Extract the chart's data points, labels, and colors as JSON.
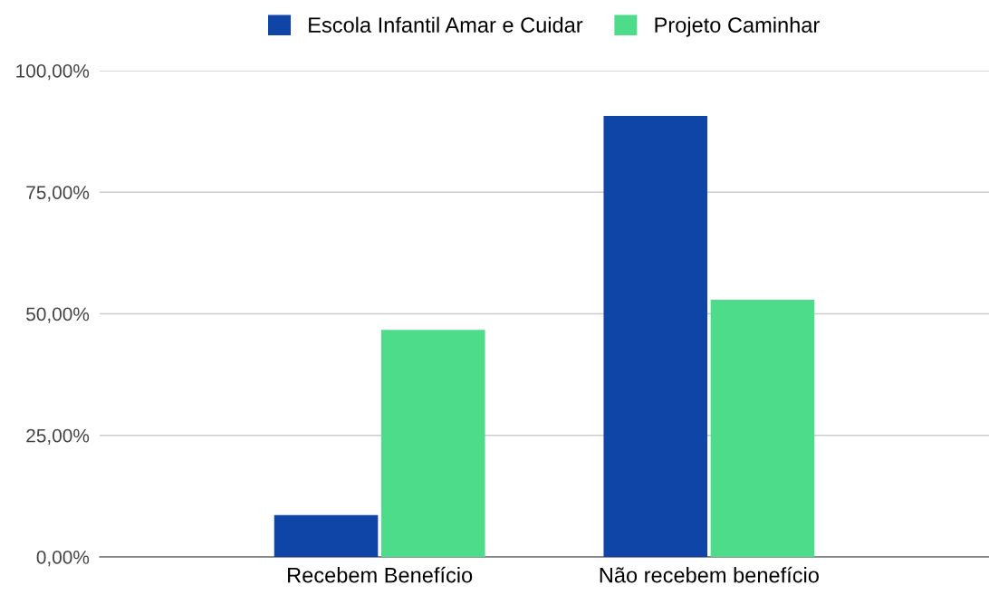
{
  "chart_data": {
    "type": "bar",
    "categories": [
      "Recebem Benefício",
      "Não recebem benefício"
    ],
    "series": [
      {
        "name": "Escola Infantil Amar e Cuidar",
        "color": "#1045a8",
        "values": [
          8.6,
          90.7
        ]
      },
      {
        "name": "Projeto Caminhar",
        "color": "#4cdc8a",
        "values": [
          46.7,
          52.9
        ]
      }
    ],
    "ylim": [
      0,
      100
    ],
    "yticks": [
      {
        "value": 0,
        "label": "0,00%"
      },
      {
        "value": 25,
        "label": "25,00%"
      },
      {
        "value": 50,
        "label": "50,00%"
      },
      {
        "value": 75,
        "label": "75,00%"
      },
      {
        "value": 100,
        "label": "100,00%"
      }
    ],
    "grid": "y",
    "legend": "top"
  }
}
